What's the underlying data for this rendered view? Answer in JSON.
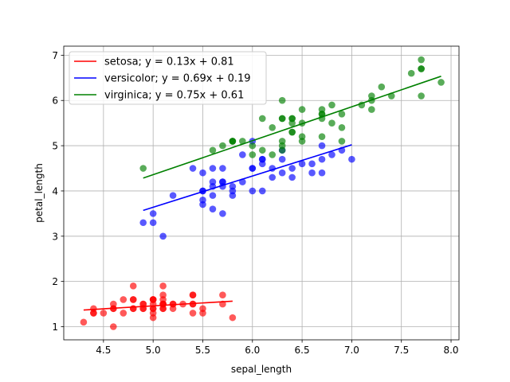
{
  "chart_data": {
    "type": "scatter",
    "title": "",
    "xlabel": "sepal_length",
    "ylabel": "petal_length",
    "xlim": [
      4.1,
      8.08
    ],
    "ylim": [
      0.71,
      7.2
    ],
    "xticks": [
      4.5,
      5.0,
      5.5,
      6.0,
      6.5,
      7.0,
      7.5,
      8.0
    ],
    "yticks": [
      1,
      2,
      3,
      4,
      5,
      6,
      7
    ],
    "grid": true,
    "legend_position": "upper-left",
    "series": [
      {
        "name": "setosa; y = 0.13x + 0.81",
        "color": "#ff0000",
        "slope": 0.13,
        "intercept": 0.81,
        "fit_range": [
          4.3,
          5.8
        ],
        "x": [
          5.1,
          4.9,
          4.7,
          4.6,
          5.0,
          5.4,
          4.6,
          5.0,
          4.4,
          4.9,
          5.4,
          4.8,
          4.8,
          4.3,
          5.8,
          5.7,
          5.4,
          5.1,
          5.7,
          5.1,
          5.4,
          5.1,
          4.6,
          5.1,
          4.8,
          5.0,
          5.0,
          5.2,
          5.2,
          4.7,
          4.8,
          5.4,
          5.2,
          5.5,
          4.9,
          5.0,
          5.5,
          4.9,
          4.4,
          5.1,
          5.0,
          4.5,
          4.4,
          5.0,
          5.1,
          4.8,
          5.1,
          4.6,
          5.3,
          5.0
        ],
        "y": [
          1.4,
          1.4,
          1.3,
          1.5,
          1.4,
          1.7,
          1.4,
          1.5,
          1.4,
          1.5,
          1.5,
          1.6,
          1.4,
          1.1,
          1.2,
          1.5,
          1.3,
          1.4,
          1.7,
          1.5,
          1.7,
          1.5,
          1.0,
          1.7,
          1.9,
          1.6,
          1.6,
          1.5,
          1.4,
          1.6,
          1.6,
          1.5,
          1.5,
          1.4,
          1.5,
          1.2,
          1.3,
          1.4,
          1.3,
          1.5,
          1.3,
          1.3,
          1.3,
          1.6,
          1.9,
          1.4,
          1.6,
          1.4,
          1.5,
          1.4
        ]
      },
      {
        "name": "versicolor; y = 0.69x + 0.19",
        "color": "#0000ff",
        "slope": 0.69,
        "intercept": 0.19,
        "fit_range": [
          4.9,
          7.0
        ],
        "x": [
          7.0,
          6.4,
          6.9,
          5.5,
          6.5,
          5.7,
          6.3,
          4.9,
          6.6,
          5.2,
          5.0,
          5.9,
          6.0,
          6.1,
          5.6,
          6.7,
          5.6,
          5.8,
          6.2,
          5.6,
          5.9,
          6.1,
          6.3,
          6.1,
          6.4,
          6.6,
          6.8,
          6.7,
          6.0,
          5.7,
          5.5,
          5.5,
          5.8,
          6.0,
          5.4,
          6.0,
          6.7,
          6.3,
          5.6,
          5.5,
          5.5,
          6.1,
          5.8,
          5.0,
          5.6,
          5.7,
          5.7,
          6.2,
          5.1,
          5.7
        ],
        "y": [
          4.7,
          4.5,
          4.9,
          4.0,
          4.6,
          4.5,
          4.7,
          3.3,
          4.6,
          3.9,
          3.5,
          4.2,
          4.0,
          4.7,
          3.6,
          4.4,
          4.5,
          4.1,
          4.5,
          3.9,
          4.8,
          4.0,
          4.9,
          4.7,
          4.3,
          4.4,
          4.8,
          5.0,
          4.5,
          3.5,
          3.8,
          3.7,
          3.9,
          5.1,
          4.5,
          4.5,
          4.7,
          4.4,
          4.1,
          4.0,
          4.4,
          4.6,
          4.0,
          3.3,
          4.2,
          4.2,
          4.2,
          4.3,
          3.0,
          4.1
        ]
      },
      {
        "name": "virginica; y = 0.75x + 0.61",
        "color": "#008000",
        "slope": 0.75,
        "intercept": 0.61,
        "fit_range": [
          4.9,
          7.9
        ],
        "x": [
          6.3,
          5.8,
          7.1,
          6.3,
          6.5,
          7.6,
          4.9,
          7.3,
          6.7,
          7.2,
          6.5,
          6.4,
          6.8,
          5.7,
          5.8,
          6.4,
          6.5,
          7.7,
          7.7,
          6.0,
          6.9,
          5.6,
          7.7,
          6.3,
          6.7,
          7.2,
          6.2,
          6.1,
          6.4,
          7.2,
          7.4,
          7.9,
          6.4,
          6.3,
          6.1,
          7.7,
          6.3,
          6.4,
          6.0,
          6.9,
          6.7,
          6.9,
          5.8,
          6.8,
          6.7,
          6.7,
          6.3,
          6.5,
          6.2,
          5.9
        ],
        "y": [
          6.0,
          5.1,
          5.9,
          5.6,
          5.8,
          6.6,
          4.5,
          6.3,
          5.8,
          6.1,
          5.1,
          5.3,
          5.5,
          5.0,
          5.1,
          5.3,
          5.5,
          6.7,
          6.9,
          5.0,
          5.7,
          4.9,
          6.7,
          4.9,
          5.7,
          6.0,
          4.8,
          4.9,
          5.6,
          5.8,
          6.1,
          6.4,
          5.6,
          5.1,
          5.6,
          6.1,
          5.6,
          5.5,
          4.8,
          5.4,
          5.6,
          5.1,
          5.1,
          5.9,
          5.7,
          5.2,
          5.0,
          5.2,
          5.4,
          5.1
        ]
      }
    ]
  }
}
